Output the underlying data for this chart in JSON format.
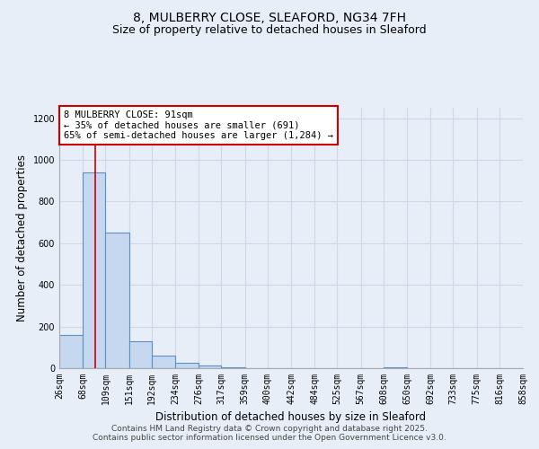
{
  "title_line1": "8, MULBERRY CLOSE, SLEAFORD, NG34 7FH",
  "title_line2": "Size of property relative to detached houses in Sleaford",
  "xlabel": "Distribution of detached houses by size in Sleaford",
  "ylabel": "Number of detached properties",
  "bin_edges": [
    26,
    68,
    109,
    151,
    192,
    234,
    276,
    317,
    359,
    400,
    442,
    484,
    525,
    567,
    608,
    650,
    692,
    733,
    775,
    816,
    858
  ],
  "bar_heights": [
    160,
    940,
    650,
    130,
    60,
    25,
    12,
    5,
    0,
    0,
    0,
    0,
    0,
    0,
    5,
    0,
    0,
    0,
    0,
    0
  ],
  "bar_color": "#c5d8f0",
  "bar_edge_color": "#5a8fc4",
  "bar_edge_width": 0.8,
  "grid_color": "#d0d8e8",
  "background_color": "#e8eef8",
  "property_size": 91,
  "red_line_color": "#cc0000",
  "annotation_line1": "8 MULBERRY CLOSE: 91sqm",
  "annotation_line2": "← 35% of detached houses are smaller (691)",
  "annotation_line3": "65% of semi-detached houses are larger (1,284) →",
  "annotation_box_color": "#ffffff",
  "annotation_box_edge": "#cc0000",
  "ylim": [
    0,
    1250
  ],
  "yticks": [
    0,
    200,
    400,
    600,
    800,
    1000,
    1200
  ],
  "footer_line1": "Contains HM Land Registry data © Crown copyright and database right 2025.",
  "footer_line2": "Contains public sector information licensed under the Open Government Licence v3.0.",
  "title_fontsize": 10,
  "subtitle_fontsize": 9,
  "axis_label_fontsize": 8.5,
  "tick_fontsize": 7,
  "annotation_fontsize": 7.5,
  "footer_fontsize": 6.5
}
